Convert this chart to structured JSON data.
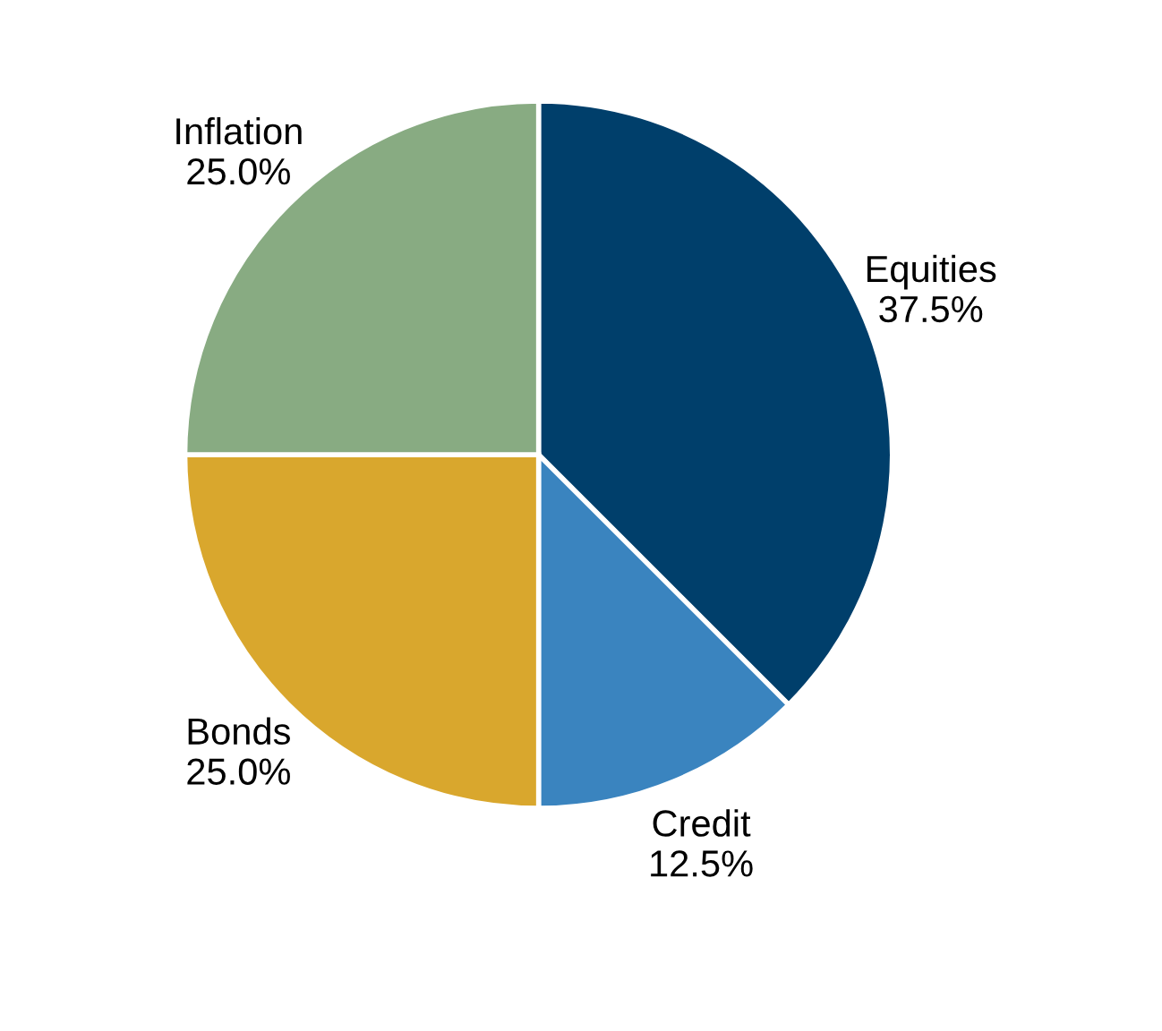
{
  "chart_data": {
    "type": "pie",
    "categories": [
      "Equities",
      "Credit",
      "Bonds",
      "Inflation"
    ],
    "values": [
      37.5,
      12.5,
      25,
      25
    ],
    "value_labels": [
      "37.5%",
      "12.5%",
      "25.0%",
      "25.0%"
    ],
    "colors": [
      "#003f6b",
      "#3a84bf",
      "#d9a72d",
      "#88ab82"
    ],
    "legend": false
  }
}
